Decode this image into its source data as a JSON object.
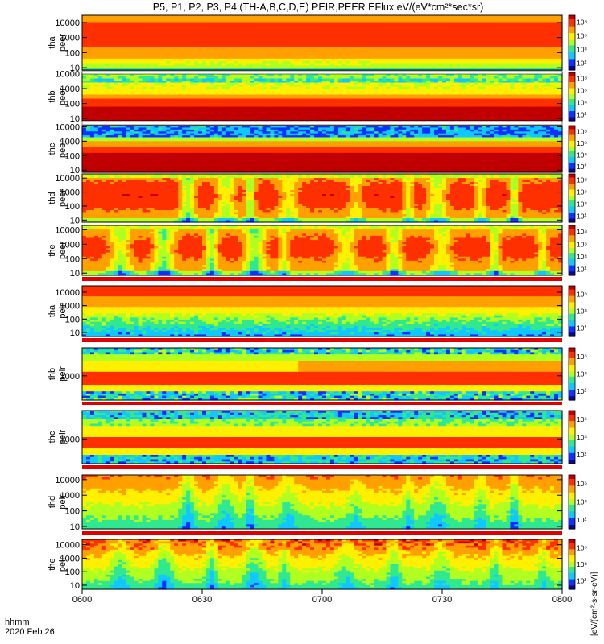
{
  "title": "P5, P1, P2, P3, P4 (TH-A,B,C,D,E) PEIR,PEER EFlux eV/(eV*cm²*sec*sr)",
  "time_label": {
    "line1": "hhmm",
    "line2": "2020 Feb 26"
  },
  "colorbar_unit": "[eV/(cm²-s-sr-eV)]",
  "colors": {
    "spectrum": [
      "#0a0a80",
      "#1030ff",
      "#10c8ff",
      "#30e890",
      "#b0ff20",
      "#fff000",
      "#ffa000",
      "#ff3000",
      "#c00000"
    ],
    "separator_red": "#e00000",
    "separator_white": "#ffffff"
  },
  "chart_data": [
    {
      "type": "heatmap",
      "probe": "tha",
      "product": "peer",
      "ylabel_line1": "tha",
      "ylabel_line2": "peer",
      "y_scale": "log",
      "ylim": [
        7,
        30000
      ],
      "yticks": [
        10,
        100,
        1000,
        10000
      ],
      "ytick_labels": [
        "10",
        "100",
        "1000",
        "10000"
      ],
      "cbar_ticks": [
        "10²",
        "10⁴",
        "10⁶",
        "10⁸"
      ],
      "profile": "tha_peer"
    },
    {
      "type": "heatmap",
      "probe": "thb",
      "product": "peer",
      "ylabel_line1": "thb",
      "ylabel_line2": "peer",
      "y_scale": "log",
      "ylim": [
        7,
        12000
      ],
      "yticks": [
        10,
        100,
        1000,
        10000
      ],
      "ytick_labels": [
        "10",
        "100",
        "1000",
        "10000"
      ],
      "cbar_ticks": [
        "10²",
        "10⁴",
        "10⁶",
        "10⁸"
      ],
      "profile": "thb_peer"
    },
    {
      "type": "heatmap",
      "probe": "thc",
      "product": "peer",
      "ylabel_line1": "thc",
      "ylabel_line2": "peer",
      "y_scale": "log",
      "ylim": [
        7,
        12000
      ],
      "yticks": [
        10,
        100,
        1000,
        10000
      ],
      "ytick_labels": [
        "10",
        "100",
        "1000",
        "10000"
      ],
      "cbar_ticks": [
        "10²",
        "10⁴",
        "10⁶",
        "10⁸"
      ],
      "profile": "thc_peer"
    },
    {
      "type": "heatmap",
      "probe": "thd",
      "product": "peer",
      "ylabel_line1": "thd",
      "ylabel_line2": "peer",
      "y_scale": "log",
      "ylim": [
        7,
        20000
      ],
      "yticks": [
        10,
        100,
        1000,
        10000
      ],
      "ytick_labels": [
        "10",
        "100",
        "1000",
        "10000"
      ],
      "cbar_ticks": [
        "10²",
        "10⁴",
        "10⁶",
        "10⁸"
      ],
      "profile": "thd_peer"
    },
    {
      "type": "heatmap",
      "probe": "the",
      "product": "peer",
      "ylabel_line1": "the",
      "ylabel_line2": "peer",
      "y_scale": "log",
      "ylim": [
        7,
        20000
      ],
      "yticks": [
        10,
        100,
        1000,
        10000
      ],
      "ytick_labels": [
        "10",
        "100",
        "1000",
        "10000"
      ],
      "cbar_ticks": [
        "10²",
        "10⁴",
        "10⁶",
        "10⁸"
      ],
      "profile": "the_peer"
    },
    {
      "type": "heatmap",
      "probe": "tha",
      "product": "peir",
      "ylabel_line1": "tha",
      "ylabel_line2": "peir",
      "y_scale": "log",
      "ylim": [
        5,
        30000
      ],
      "yticks": [
        10,
        100,
        1000,
        10000
      ],
      "ytick_labels": [
        "10",
        "100",
        "1000",
        "10000"
      ],
      "cbar_ticks": [
        "10²",
        "10⁴",
        "10⁶"
      ],
      "profile": "tha_peir"
    },
    {
      "type": "heatmap",
      "probe": "thb",
      "product": "peir",
      "ylabel_line1": "thb",
      "ylabel_line2": "peir",
      "y_scale": "log",
      "ylim": [
        300,
        4000
      ],
      "yticks": [
        1000
      ],
      "ytick_labels": [
        "1000"
      ],
      "cbar_ticks": [
        "10²",
        "10⁴",
        "10⁶"
      ],
      "profile": "thb_peir"
    },
    {
      "type": "heatmap",
      "probe": "thc",
      "product": "peir",
      "ylabel_line1": "thc",
      "ylabel_line2": "peir",
      "y_scale": "log",
      "ylim": [
        300,
        4000
      ],
      "yticks": [
        1000
      ],
      "ytick_labels": [
        "1000"
      ],
      "cbar_ticks": [
        "10²",
        "10⁴",
        "10⁶"
      ],
      "profile": "thc_peir"
    },
    {
      "type": "heatmap",
      "probe": "thd",
      "product": "peir",
      "ylabel_line1": "thd",
      "ylabel_line2": "peir",
      "y_scale": "log",
      "ylim": [
        7,
        20000
      ],
      "yticks": [
        10,
        100,
        1000,
        10000
      ],
      "ytick_labels": [
        "10",
        "100",
        "1000",
        "10000"
      ],
      "cbar_ticks": [
        "10²",
        "10⁴",
        "10⁶"
      ],
      "profile": "thd_peir"
    },
    {
      "type": "heatmap",
      "probe": "the",
      "product": "peir",
      "ylabel_line1": "the",
      "ylabel_line2": "peir",
      "y_scale": "log",
      "ylim": [
        5,
        25000
      ],
      "yticks": [
        10,
        100,
        1000,
        10000
      ],
      "ytick_labels": [
        "10",
        "100",
        "1000",
        "10000"
      ],
      "cbar_ticks": [
        "10²",
        "10⁴",
        "10⁶"
      ],
      "profile": "the_peir"
    }
  ],
  "x_axis": {
    "start": "0600",
    "end": "0800",
    "ticks": [
      {
        "time": "0600",
        "label": "0600"
      },
      {
        "time": "0630",
        "label": "0630"
      },
      {
        "time": "0700",
        "label": "0700"
      },
      {
        "time": "0730",
        "label": "0730"
      },
      {
        "time": "0800",
        "label": "0800"
      }
    ]
  }
}
